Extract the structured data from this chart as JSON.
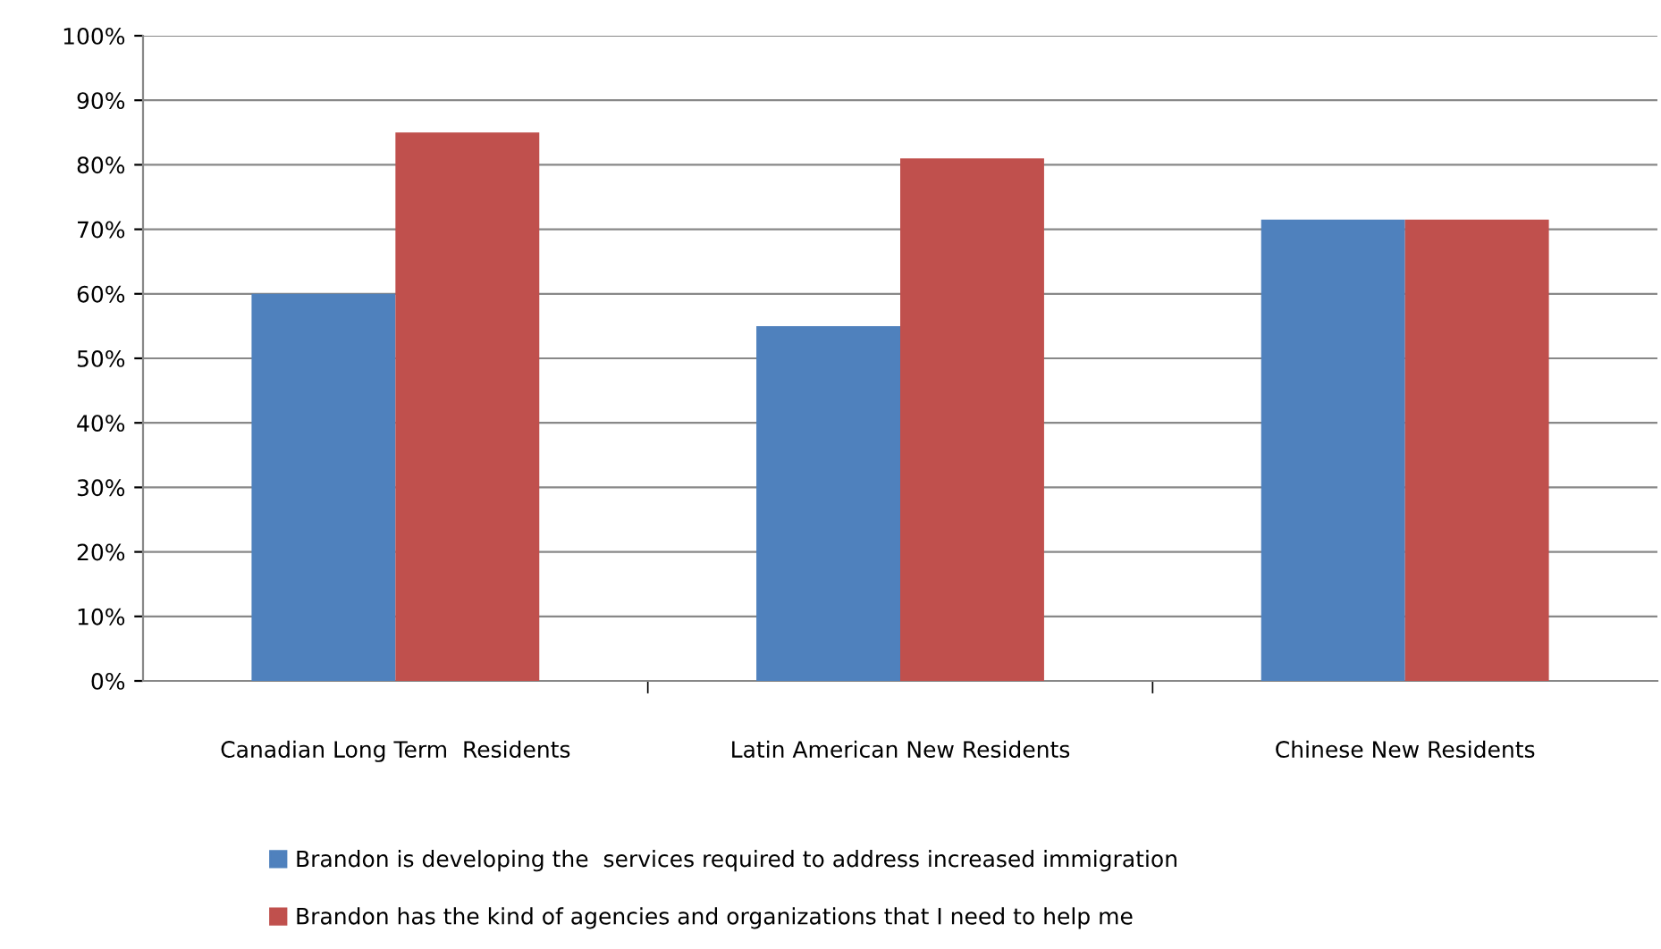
{
  "chart_data": {
    "type": "bar",
    "categories": [
      "Canadian Long Term  Residents",
      "Latin American New Residents",
      "Chinese New Residents"
    ],
    "series": [
      {
        "name": "Brandon is developing the  services required to address increased immigration",
        "color": "#4f81bd",
        "values": [
          60,
          55,
          71.5
        ]
      },
      {
        "name": "Brandon has the kind of agencies and organizations that I need to help me",
        "color": "#c0504d",
        "values": [
          85,
          81,
          71.5
        ]
      }
    ],
    "ylim": [
      0,
      100
    ],
    "yticks": [
      {
        "value": 0,
        "label": "0%"
      },
      {
        "value": 10,
        "label": "10%"
      },
      {
        "value": 20,
        "label": "20%"
      },
      {
        "value": 30,
        "label": "30%"
      },
      {
        "value": 40,
        "label": "40%"
      },
      {
        "value": 50,
        "label": "50%"
      },
      {
        "value": 60,
        "label": "60%"
      },
      {
        "value": 70,
        "label": "70%"
      },
      {
        "value": 80,
        "label": "80%"
      },
      {
        "value": 90,
        "label": "90%"
      },
      {
        "value": 100,
        "label": "100%"
      }
    ],
    "grid": "y",
    "legend": "bottom"
  }
}
